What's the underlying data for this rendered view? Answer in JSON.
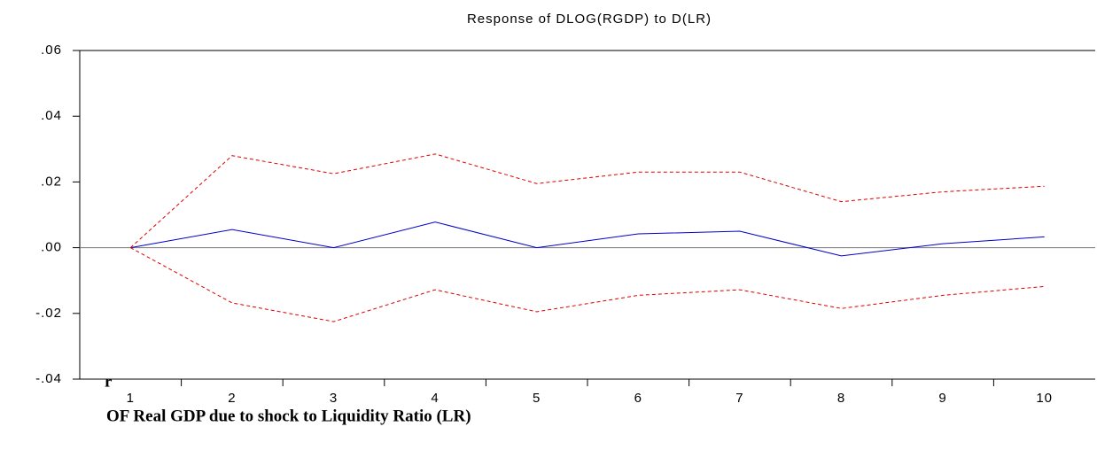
{
  "chart_data": {
    "type": "line",
    "title": "Response of DLOG(RGDP) to D(LR)",
    "caption": "OF Real GDP due to shock to Liquidity Ratio (LR)",
    "annotation": "r",
    "categories": [
      "1",
      "2",
      "3",
      "4",
      "5",
      "6",
      "7",
      "8",
      "9",
      "10"
    ],
    "series": [
      {
        "color": "#0000cc",
        "dashed": false,
        "values": [
          0,
          0.0055,
          0,
          0.0078,
          0,
          0.0042,
          0.005,
          -0.0025,
          0.0012,
          0.0033
        ]
      },
      {
        "color": "#e00000",
        "dashed": true,
        "values": [
          0,
          0.028,
          0.0225,
          0.0285,
          0.0195,
          0.023,
          0.023,
          0.014,
          0.017,
          0.0187
        ]
      },
      {
        "color": "#e00000",
        "dashed": true,
        "values": [
          0,
          -0.0168,
          -0.0225,
          -0.0128,
          -0.0195,
          -0.0145,
          -0.0128,
          -0.0185,
          -0.0145,
          -0.0118
        ]
      }
    ],
    "ylim": [
      -0.04,
      0.06
    ],
    "yticks": [
      {
        "value": -0.04,
        "label": "-.04"
      },
      {
        "value": -0.02,
        "label": "-.02"
      },
      {
        "value": 0,
        "label": ".00"
      },
      {
        "value": 0.02,
        "label": ".02"
      },
      {
        "value": 0.04,
        "label": ".04"
      },
      {
        "value": 0.06,
        "label": ".06"
      }
    ],
    "zero_line": true
  }
}
